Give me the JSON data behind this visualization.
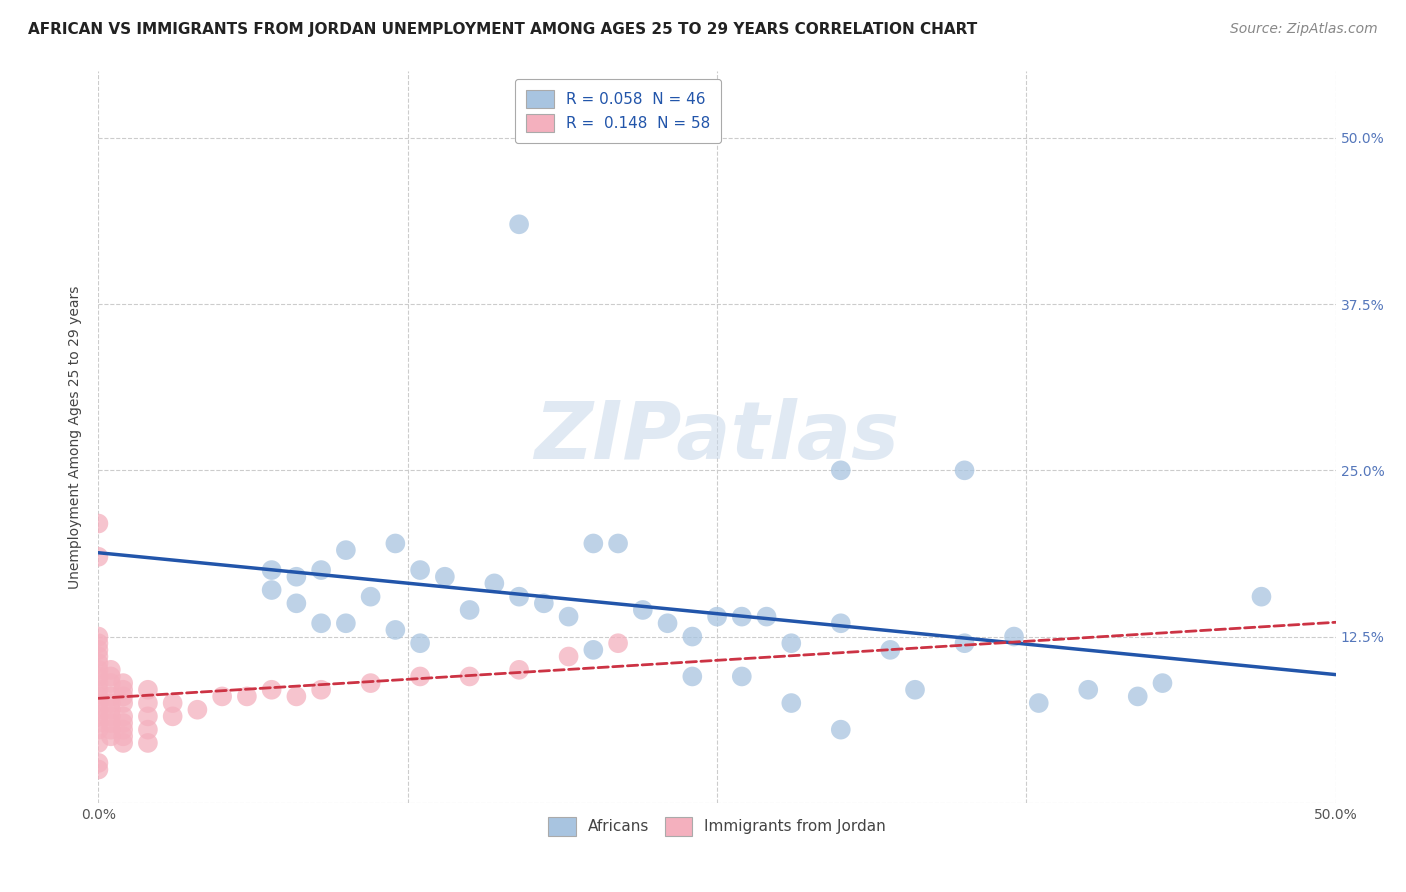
{
  "title": "AFRICAN VS IMMIGRANTS FROM JORDAN UNEMPLOYMENT AMONG AGES 25 TO 29 YEARS CORRELATION CHART",
  "source": "Source: ZipAtlas.com",
  "ylabel": "Unemployment Among Ages 25 to 29 years",
  "R_africans": 0.058,
  "N_africans": 46,
  "R_jordan": 0.148,
  "N_jordan": 58,
  "africans_color": "#a8c4e0",
  "africans_line_color": "#2255aa",
  "jordan_color": "#f4b0be",
  "jordan_line_color": "#cc3344",
  "background_color": "#ffffff",
  "xlim": [
    0.0,
    0.5
  ],
  "ylim": [
    0.0,
    0.55
  ],
  "africans_x": [
    0.17,
    0.3,
    0.35,
    0.07,
    0.07,
    0.08,
    0.09,
    0.1,
    0.11,
    0.12,
    0.13,
    0.14,
    0.15,
    0.16,
    0.17,
    0.18,
    0.19,
    0.2,
    0.21,
    0.22,
    0.23,
    0.24,
    0.25,
    0.26,
    0.27,
    0.28,
    0.3,
    0.32,
    0.35,
    0.37,
    0.4,
    0.43,
    0.47,
    0.08,
    0.09,
    0.1,
    0.12,
    0.13,
    0.2,
    0.24,
    0.26,
    0.28,
    0.3,
    0.33,
    0.38,
    0.42
  ],
  "africans_y": [
    0.435,
    0.25,
    0.25,
    0.175,
    0.16,
    0.17,
    0.175,
    0.19,
    0.155,
    0.195,
    0.175,
    0.17,
    0.145,
    0.165,
    0.155,
    0.15,
    0.14,
    0.195,
    0.195,
    0.145,
    0.135,
    0.125,
    0.14,
    0.14,
    0.14,
    0.12,
    0.135,
    0.115,
    0.12,
    0.125,
    0.085,
    0.09,
    0.155,
    0.15,
    0.135,
    0.135,
    0.13,
    0.12,
    0.115,
    0.095,
    0.095,
    0.075,
    0.055,
    0.085,
    0.075,
    0.08
  ],
  "jordan_x": [
    0.0,
    0.0,
    0.0,
    0.0,
    0.0,
    0.0,
    0.0,
    0.0,
    0.0,
    0.0,
    0.0,
    0.0,
    0.0,
    0.0,
    0.0,
    0.0,
    0.0,
    0.0,
    0.005,
    0.005,
    0.005,
    0.005,
    0.005,
    0.005,
    0.005,
    0.005,
    0.005,
    0.005,
    0.01,
    0.01,
    0.01,
    0.01,
    0.01,
    0.01,
    0.01,
    0.01,
    0.02,
    0.02,
    0.02,
    0.02,
    0.03,
    0.03,
    0.04,
    0.05,
    0.06,
    0.07,
    0.08,
    0.09,
    0.11,
    0.13,
    0.15,
    0.17,
    0.19,
    0.21,
    0.02,
    0.01,
    0.0,
    0.0
  ],
  "jordan_y": [
    0.045,
    0.055,
    0.06,
    0.065,
    0.07,
    0.075,
    0.08,
    0.085,
    0.09,
    0.095,
    0.1,
    0.105,
    0.11,
    0.115,
    0.12,
    0.125,
    0.185,
    0.21,
    0.05,
    0.055,
    0.06,
    0.065,
    0.07,
    0.075,
    0.08,
    0.09,
    0.095,
    0.1,
    0.05,
    0.055,
    0.06,
    0.065,
    0.075,
    0.08,
    0.085,
    0.09,
    0.055,
    0.065,
    0.075,
    0.085,
    0.065,
    0.075,
    0.07,
    0.08,
    0.08,
    0.085,
    0.08,
    0.085,
    0.09,
    0.095,
    0.095,
    0.1,
    0.11,
    0.12,
    0.045,
    0.045,
    0.03,
    0.025
  ],
  "title_fontsize": 11,
  "axis_fontsize": 10,
  "tick_fontsize": 10,
  "legend_fontsize": 11,
  "source_fontsize": 10
}
